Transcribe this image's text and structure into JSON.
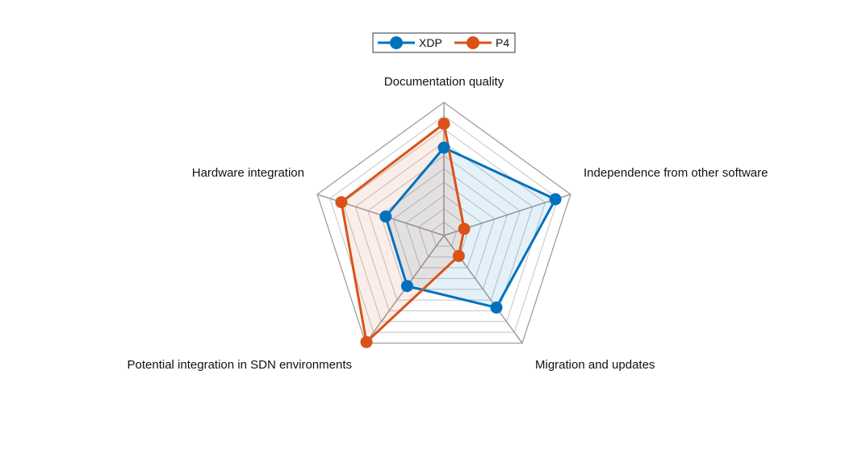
{
  "chart_data": {
    "type": "radar",
    "title": "",
    "axes": [
      "Documentation quality",
      "Independence from other software",
      "Migration and updates",
      "Potential integration in SDN environments",
      "Hardware integration"
    ],
    "range": [
      0,
      10
    ],
    "grid_levels": 10,
    "grid": true,
    "legend": {
      "placement": "top-center",
      "entries": [
        "XDP",
        "P4"
      ]
    },
    "series": [
      {
        "name": "XDP",
        "color": "#0072BD",
        "values": [
          6.6,
          8.8,
          6.7,
          4.7,
          4.6
        ]
      },
      {
        "name": "P4",
        "color": "#D95319",
        "values": [
          8.4,
          1.6,
          1.9,
          9.9,
          8.1
        ]
      }
    ]
  }
}
